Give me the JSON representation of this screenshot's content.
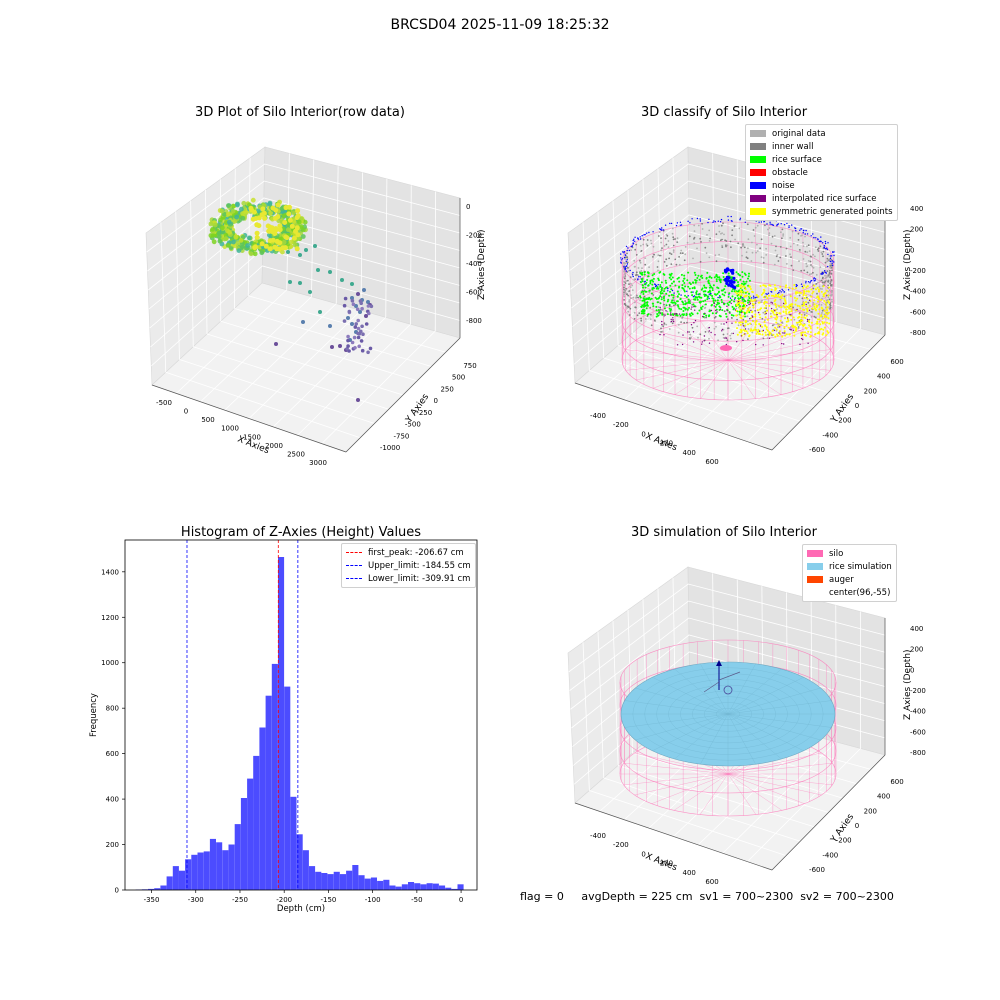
{
  "figure": {
    "suptitle": "BRCSD04 2025-11-09 18:25:32",
    "footer": "flag = 0     avgDepth = 225 cm  sv1 = 700~2300  sv2 = 700~2300"
  },
  "panels": {
    "raw": {
      "title": "3D Plot of Silo Interior(row data)",
      "xlabel": "X Axies",
      "ylabel": "Y Axies",
      "zlabel": "Z Axies (Depth)",
      "xticks": [
        "-500",
        "0",
        "500",
        "1000",
        "1500",
        "2000",
        "2500",
        "3000"
      ],
      "yticks": [
        "-1000",
        "-750",
        "-500",
        "-250",
        "0",
        "250",
        "500",
        "750"
      ],
      "zticks": [
        "0",
        "-200",
        "-400",
        "-600",
        "-800"
      ]
    },
    "classify": {
      "title": "3D classify of Silo Interior",
      "xlabel": "X Axies",
      "ylabel": "Y Axies",
      "zlabel": "Z Axies (Depth)",
      "xticks": [
        "-400",
        "-200",
        "0",
        "200",
        "400",
        "600"
      ],
      "yticks": [
        "-600",
        "-400",
        "-200",
        "0",
        "200",
        "400",
        "600"
      ],
      "zticks": [
        "400",
        "200",
        "0",
        "-200",
        "-400",
        "-600",
        "-800"
      ],
      "legend": [
        {
          "label": "original data",
          "color": "#b0b0b0"
        },
        {
          "label": "inner wall",
          "color": "#808080"
        },
        {
          "label": "rice surface",
          "color": "#00ff00"
        },
        {
          "label": "obstacle",
          "color": "#ff0000"
        },
        {
          "label": "noise",
          "color": "#0000ff"
        },
        {
          "label": "interpolated rice surface",
          "color": "#800080"
        },
        {
          "label": "symmetric generated points",
          "color": "#ffff00"
        }
      ]
    },
    "simulation": {
      "title": "3D simulation of Silo Interior",
      "xlabel": "X Axies",
      "ylabel": "Y Axies",
      "zlabel": "Z Axies (Depth)",
      "xticks": [
        "-400",
        "-200",
        "0",
        "200",
        "400",
        "600"
      ],
      "yticks": [
        "-600",
        "-400",
        "-200",
        "0",
        "200",
        "400",
        "600"
      ],
      "zticks": [
        "400",
        "200",
        "0",
        "-200",
        "-400",
        "-600",
        "-800"
      ],
      "legend": [
        {
          "label": "silo",
          "color": "#ff69b4"
        },
        {
          "label": "rice simulation",
          "color": "#87ceeb"
        },
        {
          "label": "auger",
          "color": "#ff4500"
        },
        {
          "label": "center(96,-55)",
          "color": "#ffffff"
        }
      ]
    }
  },
  "chart_data": {
    "type": "bar",
    "title": "Histogram of Z-Axies (Height) Values",
    "xlabel": "Depth (cm)",
    "ylabel": "Frequency",
    "xlim": [
      -380,
      18
    ],
    "ylim": [
      0,
      1540
    ],
    "xticks": [
      -350,
      -300,
      -250,
      -200,
      -150,
      -100,
      -50,
      0
    ],
    "yticks": [
      0,
      200,
      400,
      600,
      800,
      1000,
      1200,
      1400
    ],
    "bar_color": "#0000ff",
    "bin_width": 6.9,
    "bins": [
      {
        "x": -368,
        "v": 2
      },
      {
        "x": -361,
        "v": 3
      },
      {
        "x": -354,
        "v": 5
      },
      {
        "x": -347,
        "v": 8
      },
      {
        "x": -340,
        "v": 20
      },
      {
        "x": -333,
        "v": 60
      },
      {
        "x": -326,
        "v": 105
      },
      {
        "x": -319,
        "v": 85
      },
      {
        "x": -312,
        "v": 135
      },
      {
        "x": -305,
        "v": 155
      },
      {
        "x": -298,
        "v": 165
      },
      {
        "x": -291,
        "v": 170
      },
      {
        "x": -284,
        "v": 225
      },
      {
        "x": -277,
        "v": 210
      },
      {
        "x": -270,
        "v": 175
      },
      {
        "x": -263,
        "v": 200
      },
      {
        "x": -256,
        "v": 290
      },
      {
        "x": -249,
        "v": 405
      },
      {
        "x": -242,
        "v": 490
      },
      {
        "x": -235,
        "v": 590
      },
      {
        "x": -228,
        "v": 715
      },
      {
        "x": -221,
        "v": 855
      },
      {
        "x": -214,
        "v": 995
      },
      {
        "x": -207,
        "v": 1465
      },
      {
        "x": -200,
        "v": 895
      },
      {
        "x": -193,
        "v": 410
      },
      {
        "x": -186,
        "v": 245
      },
      {
        "x": -179,
        "v": 175
      },
      {
        "x": -172,
        "v": 105
      },
      {
        "x": -165,
        "v": 80
      },
      {
        "x": -158,
        "v": 75
      },
      {
        "x": -151,
        "v": 70
      },
      {
        "x": -144,
        "v": 80
      },
      {
        "x": -137,
        "v": 70
      },
      {
        "x": -130,
        "v": 85
      },
      {
        "x": -123,
        "v": 110
      },
      {
        "x": -116,
        "v": 65
      },
      {
        "x": -109,
        "v": 50
      },
      {
        "x": -102,
        "v": 55
      },
      {
        "x": -95,
        "v": 40
      },
      {
        "x": -88,
        "v": 45
      },
      {
        "x": -81,
        "v": 20
      },
      {
        "x": -74,
        "v": 15
      },
      {
        "x": -67,
        "v": 25
      },
      {
        "x": -60,
        "v": 35
      },
      {
        "x": -53,
        "v": 30
      },
      {
        "x": -46,
        "v": 25
      },
      {
        "x": -39,
        "v": 30
      },
      {
        "x": -32,
        "v": 28
      },
      {
        "x": -25,
        "v": 20
      },
      {
        "x": -18,
        "v": 10
      },
      {
        "x": -11,
        "v": 5
      },
      {
        "x": -4,
        "v": 25
      }
    ],
    "vlines": [
      {
        "label": "first_peak: -206.67 cm",
        "x": -206.67,
        "color": "#ff0000"
      },
      {
        "label": "Upper_limit: -184.55 cm",
        "x": -184.55,
        "color": "#0000ff"
      },
      {
        "label": "Lower_limit: -309.91 cm",
        "x": -309.91,
        "color": "#0000ff"
      }
    ]
  }
}
